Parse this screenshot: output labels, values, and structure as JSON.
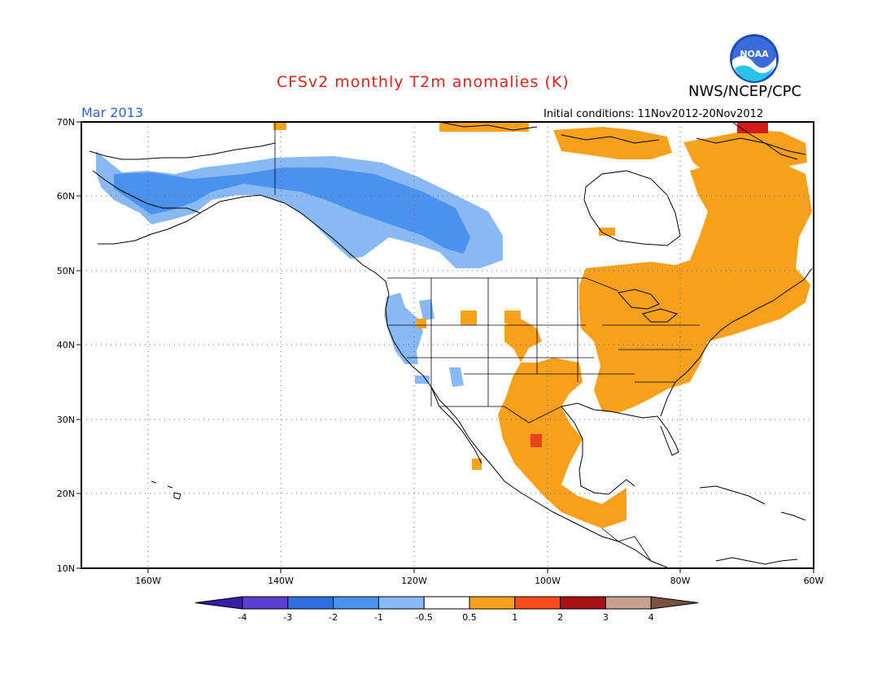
{
  "title": "CFSv2 monthly T2m anomalies (K)",
  "org": "NWS/NCEP/CPC",
  "logo_text": "NOAA",
  "valid_month": "Mar 2013",
  "initial_conditions": "Initial conditions: 11Nov2012-20Nov2012",
  "lat_labels": [
    "70N",
    "60N",
    "50N",
    "40N",
    "30N",
    "20N",
    "10N"
  ],
  "lon_labels": [
    "160W",
    "140W",
    "120W",
    "100W",
    "80W",
    "60W"
  ],
  "colorbar": {
    "labels": [
      "-4",
      "-3",
      "-2",
      "-1",
      "-0.5",
      "0.5",
      "1",
      "2",
      "3",
      "4"
    ],
    "colors": [
      "#3a1aa8",
      "#5a3fd4",
      "#2f6fe0",
      "#4a92ee",
      "#88b9f2",
      "#ffffff",
      "#f7a01b",
      "#ff4a1c",
      "#a81212",
      "#c8a090",
      "#7a5040"
    ]
  },
  "colors": {
    "title": "#e0201a",
    "date": "#2a5ff0",
    "warm": "#f7a01b",
    "hot": "#e8421e",
    "very_hot": "#d41a1a",
    "cool_light": "#88b9f2",
    "cool": "#4a92ee"
  }
}
